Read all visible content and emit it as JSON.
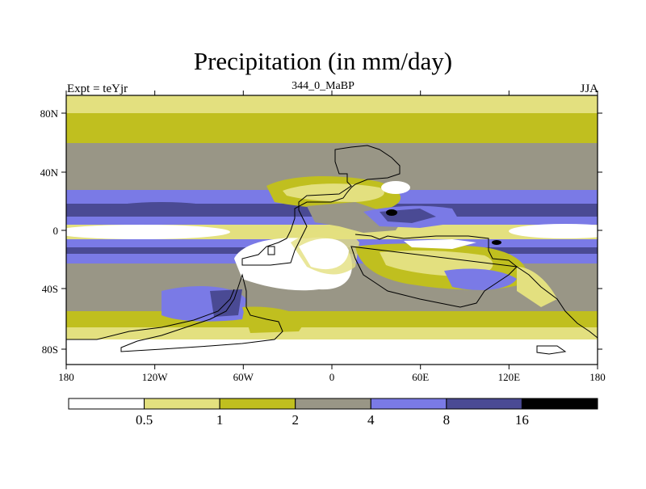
{
  "title": "Precipitation (in mm/day)",
  "subtitle_left": "Expt = teYjr",
  "subtitle_center": "344_0_MaBP",
  "subtitle_right": "JJA",
  "lat_ticks": [
    "80N",
    "40N",
    "0",
    "40S",
    "80S"
  ],
  "lon_ticks": [
    "180",
    "120W",
    "60W",
    "0",
    "60E",
    "120E",
    "180"
  ],
  "colorbar": {
    "colors": [
      "#ffffff",
      "#e3e07f",
      "#c0bf1f",
      "#999686",
      "#7a7ae6",
      "#4a4a94",
      "#000000"
    ],
    "labels": [
      "0.5",
      "1",
      "2",
      "4",
      "8",
      "16"
    ]
  },
  "palette": {
    "white": "#ffffff",
    "pale": "#e3e07f",
    "olive": "#c0bf1f",
    "gray": "#999686",
    "blue": "#7a7ae6",
    "navy": "#4a4a94",
    "black": "#000000"
  }
}
